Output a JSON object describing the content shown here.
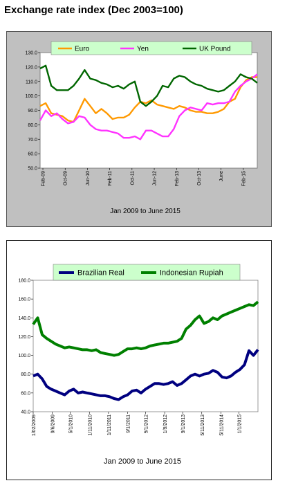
{
  "page_title": "Exchange rate index (Dec 2003=100)",
  "chart_data": [
    {
      "type": "line",
      "xlabel": "Jan 2009 to June 2015",
      "ylabel": "",
      "ylim": [
        50,
        130
      ],
      "yticks": [
        "50.0",
        "60.0",
        "70.0",
        "80.0",
        "90.0",
        "100.0",
        "110.0",
        "120.0",
        "130.0"
      ],
      "xtick_labels": [
        "Feb-09",
        "Oct-09",
        "Jun-10",
        "Feb-11",
        "Oct-11",
        "Jun-12",
        "Feb-13",
        "Oct-13",
        "June",
        "Feb-15"
      ],
      "xtick_months": [
        1,
        9,
        17,
        25,
        33,
        41,
        49,
        57,
        65,
        73
      ],
      "x_month_range": [
        0,
        78
      ],
      "legend_position": "top",
      "grid": false,
      "series": [
        {
          "name": "Euro",
          "color": "#ff9900",
          "months": [
            0,
            2,
            4,
            6,
            8,
            10,
            12,
            14,
            16,
            18,
            20,
            22,
            24,
            26,
            28,
            30,
            32,
            34,
            36,
            38,
            40,
            42,
            44,
            46,
            48,
            50,
            52,
            54,
            56,
            58,
            60,
            62,
            64,
            66,
            68,
            70,
            72,
            74,
            76,
            78
          ],
          "values": [
            93,
            95,
            88,
            87,
            86,
            83,
            82,
            90,
            98,
            93,
            88,
            91,
            88,
            84,
            85,
            85,
            87,
            92,
            96,
            95,
            97,
            94,
            93,
            92,
            91,
            93,
            92,
            90,
            89,
            89,
            88,
            88,
            89,
            91,
            96,
            98,
            106,
            111,
            113,
            113
          ]
        },
        {
          "name": "Yen",
          "color": "#ff33ff",
          "months": [
            0,
            2,
            4,
            6,
            8,
            10,
            12,
            14,
            16,
            18,
            20,
            22,
            24,
            26,
            28,
            30,
            32,
            34,
            36,
            38,
            40,
            42,
            44,
            46,
            48,
            50,
            52,
            54,
            56,
            58,
            60,
            62,
            64,
            66,
            68,
            70,
            72,
            74,
            76,
            78
          ],
          "values": [
            83,
            90,
            86,
            88,
            84,
            81,
            82,
            86,
            85,
            80,
            77,
            76,
            76,
            75,
            74,
            71,
            71,
            72,
            70,
            76,
            76,
            74,
            72,
            72,
            77,
            86,
            90,
            92,
            91,
            90,
            95,
            94,
            95,
            95,
            96,
            103,
            107,
            110,
            112,
            115
          ]
        },
        {
          "name": "UK Pound",
          "color": "#006600",
          "months": [
            0,
            2,
            4,
            6,
            8,
            10,
            12,
            14,
            16,
            18,
            20,
            22,
            24,
            26,
            28,
            30,
            32,
            34,
            36,
            38,
            40,
            42,
            44,
            46,
            48,
            50,
            52,
            54,
            56,
            58,
            60,
            62,
            64,
            66,
            68,
            70,
            72,
            74,
            76,
            78
          ],
          "values": [
            119,
            121,
            107,
            104,
            104,
            104,
            107,
            112,
            118,
            112,
            111,
            109,
            108,
            106,
            107,
            105,
            108,
            110,
            96,
            93,
            96,
            100,
            107,
            106,
            112,
            114,
            113,
            110,
            108,
            107,
            105,
            104,
            103,
            104,
            107,
            110,
            115,
            113,
            112,
            109
          ]
        }
      ]
    },
    {
      "type": "line",
      "xlabel": "Jan 2009 to June  2015",
      "ylabel": "",
      "ylim": [
        40,
        180
      ],
      "yticks": [
        "40.0",
        "60.0",
        "80.0",
        "100.0",
        "120.0",
        "140.0",
        "160.0",
        "180.0"
      ],
      "xtick_labels": [
        "1/02/2009",
        "9/6/2009",
        "5/1/2010",
        "1/11/2010",
        "1/11/2011",
        "9/1/2011",
        "5/1/2012",
        "1/9/2012",
        "9/1/2013",
        "5/11/2013",
        "5/11/2014",
        "1/1/2015"
      ],
      "xtick_fracs": [
        0.0,
        0.085,
        0.165,
        0.25,
        0.335,
        0.42,
        0.5,
        0.585,
        0.665,
        0.75,
        0.835,
        0.915
      ],
      "legend_position": "top",
      "grid": false,
      "series": [
        {
          "name": "Brazilian Real",
          "color": "#000080",
          "fracs": [
            0,
            0.02,
            0.04,
            0.06,
            0.08,
            0.1,
            0.12,
            0.14,
            0.16,
            0.18,
            0.2,
            0.22,
            0.24,
            0.26,
            0.28,
            0.3,
            0.32,
            0.34,
            0.36,
            0.38,
            0.4,
            0.42,
            0.44,
            0.46,
            0.48,
            0.5,
            0.52,
            0.54,
            0.56,
            0.58,
            0.6,
            0.62,
            0.64,
            0.66,
            0.68,
            0.7,
            0.72,
            0.74,
            0.76,
            0.78,
            0.8,
            0.82,
            0.84,
            0.86,
            0.88,
            0.9,
            0.92,
            0.94,
            0.96,
            0.98,
            1.0
          ],
          "values": [
            78,
            80,
            75,
            67,
            64,
            62,
            60,
            58,
            62,
            64,
            60,
            61,
            60,
            59,
            58,
            57,
            57,
            56,
            54,
            53,
            56,
            58,
            62,
            63,
            60,
            64,
            67,
            70,
            70,
            69,
            70,
            72,
            68,
            70,
            74,
            78,
            80,
            78,
            80,
            81,
            84,
            82,
            77,
            76,
            78,
            82,
            85,
            90,
            105,
            100,
            106
          ]
        },
        {
          "name": "Indonesian Rupiah",
          "color": "#008000",
          "fracs": [
            0,
            0.02,
            0.04,
            0.06,
            0.08,
            0.1,
            0.12,
            0.14,
            0.16,
            0.18,
            0.2,
            0.22,
            0.24,
            0.26,
            0.28,
            0.3,
            0.32,
            0.34,
            0.36,
            0.38,
            0.4,
            0.42,
            0.44,
            0.46,
            0.48,
            0.5,
            0.52,
            0.54,
            0.56,
            0.58,
            0.6,
            0.62,
            0.64,
            0.66,
            0.68,
            0.7,
            0.72,
            0.74,
            0.76,
            0.78,
            0.8,
            0.82,
            0.84,
            0.86,
            0.88,
            0.9,
            0.92,
            0.94,
            0.96,
            0.98,
            1.0
          ],
          "values": [
            133,
            140,
            122,
            118,
            115,
            112,
            110,
            108,
            109,
            108,
            107,
            106,
            106,
            105,
            106,
            103,
            102,
            101,
            100,
            101,
            104,
            107,
            107,
            108,
            107,
            108,
            110,
            111,
            112,
            113,
            113,
            114,
            115,
            118,
            128,
            132,
            138,
            142,
            134,
            136,
            140,
            138,
            142,
            144,
            146,
            148,
            150,
            152,
            154,
            153,
            157
          ]
        }
      ]
    }
  ]
}
